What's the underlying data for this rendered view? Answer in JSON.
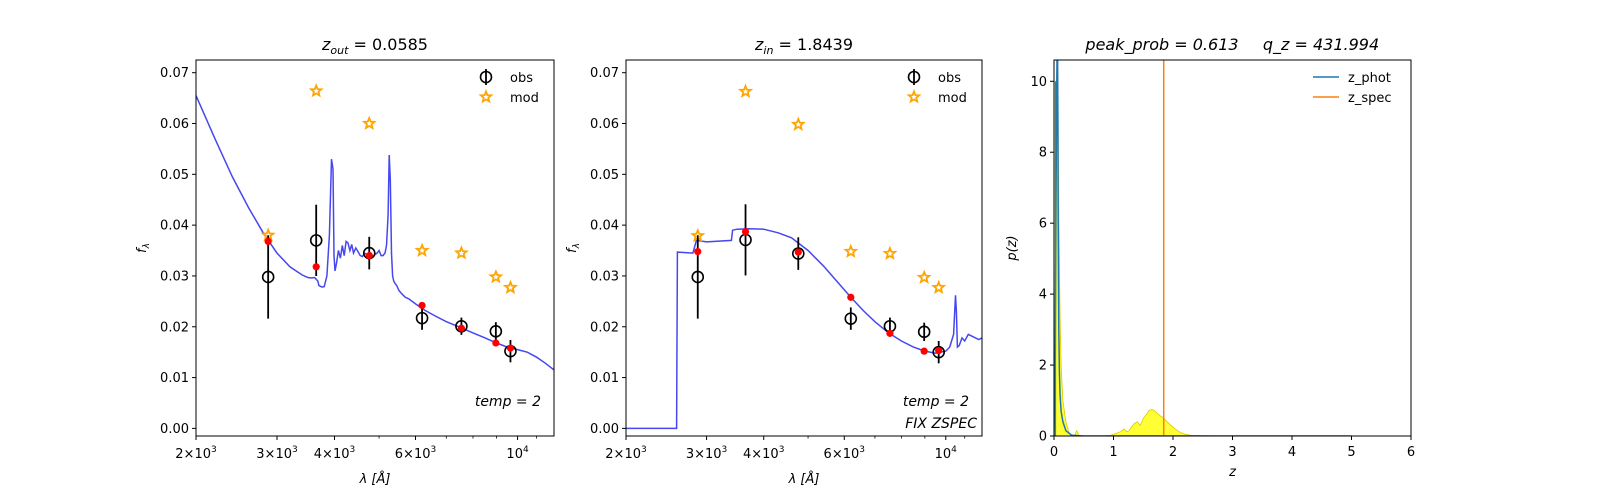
{
  "chart_data": [
    {
      "type": "scatter",
      "title": "z_out = 0.0585",
      "title_parts": {
        "var": "z",
        "sub": "out",
        "value": "= 0.0585"
      },
      "xlabel": "λ [Å]",
      "ylabel": "f_λ",
      "x_scale": "log",
      "xlim": [
        2000,
        12000
      ],
      "ylim": [
        -0.0015,
        0.0725
      ],
      "x_ticks": [
        {
          "value": 2000,
          "mant": "2",
          "exp": "3"
        },
        {
          "value": 3000,
          "mant": "3",
          "exp": "3"
        },
        {
          "value": 4000,
          "mant": "4",
          "exp": "3"
        },
        {
          "value": 6000,
          "mant": "6",
          "exp": "3"
        },
        {
          "value": 10000,
          "mant": "",
          "exp": "4"
        }
      ],
      "y_ticks": [
        "0.00",
        "0.01",
        "0.02",
        "0.03",
        "0.04",
        "0.05",
        "0.06",
        "0.07"
      ],
      "legend": {
        "position": "top-right",
        "entries": [
          "obs",
          "mod"
        ]
      },
      "annotations": [
        "temp = 2"
      ],
      "series": [
        {
          "name": "obs",
          "x": [
            2870,
            3650,
            4760,
            6200,
            7550,
            8970,
            9650
          ],
          "y": [
            0.0298,
            0.037,
            0.0345,
            0.0217,
            0.0201,
            0.0191,
            0.0152
          ],
          "yerr": [
            0.0082,
            0.007,
            0.0032,
            0.0023,
            0.0017,
            0.0018,
            0.0022
          ],
          "color": "#000000"
        },
        {
          "name": "mod",
          "x": [
            2870,
            3650,
            4760,
            6200,
            7550,
            8970,
            9650
          ],
          "y": [
            0.038,
            0.0664,
            0.06,
            0.035,
            0.0345,
            0.0298,
            0.0277
          ],
          "color": "#ffa500"
        },
        {
          "name": "model_at_obs",
          "x": [
            2870,
            3650,
            4760,
            6200,
            7550,
            8970,
            9650
          ],
          "y": [
            0.0368,
            0.0318,
            0.034,
            0.0242,
            0.0197,
            0.0168,
            0.0158
          ],
          "color": "#ff0000"
        },
        {
          "name": "template",
          "color": "#3333ee",
          "x": [
            2000,
            2200,
            2400,
            2600,
            2800,
            3000,
            3200,
            3400,
            3500,
            3560,
            3620,
            3680,
            3700,
            3760,
            3800,
            3850,
            3900,
            3940,
            3970,
            3990,
            4010,
            4040,
            4080,
            4120,
            4160,
            4200,
            4240,
            4280,
            4320,
            4360,
            4400,
            4450,
            4500,
            4550,
            4600,
            4650,
            4700,
            4750,
            4800,
            4850,
            4900,
            4950,
            5000,
            5050,
            5100,
            5150,
            5190,
            5230,
            5260,
            5290,
            5320,
            5350,
            5380,
            5420,
            5470,
            5520,
            5600,
            5700,
            5800,
            6000,
            6300,
            6600,
            7000,
            7500,
            8000,
            8500,
            9000,
            9500,
            10000,
            10500,
            11000,
            11500,
            12000
          ],
          "y": [
            0.0655,
            0.057,
            0.0495,
            0.0435,
            0.0385,
            0.0345,
            0.0318,
            0.0302,
            0.0297,
            0.0296,
            0.0297,
            0.029,
            0.0281,
            0.0278,
            0.0279,
            0.03,
            0.038,
            0.053,
            0.051,
            0.034,
            0.031,
            0.0325,
            0.035,
            0.0335,
            0.036,
            0.034,
            0.0368,
            0.0365,
            0.035,
            0.0362,
            0.0345,
            0.0355,
            0.0348,
            0.034,
            0.0338,
            0.0345,
            0.0342,
            0.034,
            0.0345,
            0.0338,
            0.0342,
            0.0345,
            0.035,
            0.034,
            0.034,
            0.0345,
            0.036,
            0.042,
            0.0538,
            0.049,
            0.0345,
            0.03,
            0.029,
            0.0285,
            0.028,
            0.0272,
            0.0265,
            0.0258,
            0.0255,
            0.0245,
            0.0232,
            0.0222,
            0.021,
            0.0199,
            0.0188,
            0.0178,
            0.0168,
            0.016,
            0.0155,
            0.015,
            0.014,
            0.0128,
            0.0115
          ]
        }
      ]
    },
    {
      "type": "scatter",
      "title": "z_in = 1.8439",
      "title_parts": {
        "var": "z",
        "sub": "in",
        "value": "= 1.8439"
      },
      "xlabel": "λ [Å]",
      "ylabel": "f_λ",
      "x_scale": "log",
      "xlim": [
        2000,
        12000
      ],
      "ylim": [
        -0.0015,
        0.0725
      ],
      "x_ticks": [
        {
          "value": 2000,
          "mant": "2",
          "exp": "3"
        },
        {
          "value": 3000,
          "mant": "3",
          "exp": "3"
        },
        {
          "value": 4000,
          "mant": "4",
          "exp": "3"
        },
        {
          "value": 6000,
          "mant": "6",
          "exp": "3"
        },
        {
          "value": 10000,
          "mant": "",
          "exp": "4"
        }
      ],
      "y_ticks": [
        "0.00",
        "0.01",
        "0.02",
        "0.03",
        "0.04",
        "0.05",
        "0.06",
        "0.07"
      ],
      "legend": {
        "position": "top-right",
        "entries": [
          "obs",
          "mod"
        ]
      },
      "annotations": [
        "temp = 2",
        "FIX ZSPEC"
      ],
      "series": [
        {
          "name": "obs",
          "x": [
            2870,
            3650,
            4760,
            6200,
            7550,
            8970,
            9650
          ],
          "y": [
            0.0298,
            0.0371,
            0.0344,
            0.0216,
            0.0201,
            0.019,
            0.015
          ],
          "yerr": [
            0.0082,
            0.007,
            0.0032,
            0.0022,
            0.0017,
            0.0018,
            0.0022
          ],
          "color": "#000000"
        },
        {
          "name": "mod",
          "x": [
            2870,
            3650,
            4760,
            6200,
            7550,
            8970,
            9650
          ],
          "y": [
            0.0379,
            0.0663,
            0.0598,
            0.0348,
            0.0344,
            0.0297,
            0.0277
          ],
          "color": "#ffa500"
        },
        {
          "name": "model_at_obs",
          "x": [
            2870,
            3650,
            4760,
            6200,
            7550,
            8970,
            9650
          ],
          "y": [
            0.0348,
            0.0387,
            0.0347,
            0.0258,
            0.0187,
            0.0152,
            0.0153
          ],
          "color": "#ff0000"
        },
        {
          "name": "template",
          "color": "#3333ee",
          "x": [
            2000,
            2580,
            2590,
            2800,
            2850,
            3000,
            3400,
            3420,
            3500,
            3700,
            4000,
            4300,
            4600,
            5000,
            5400,
            5800,
            6200,
            6600,
            7000,
            7500,
            8000,
            8500,
            9000,
            9500,
            10000,
            10200,
            10400,
            10500,
            10550,
            10600,
            10700,
            10850,
            11000,
            11200,
            11500,
            11800,
            12000
          ],
          "y": [
            0.0,
            0.0,
            0.0347,
            0.0345,
            0.037,
            0.0367,
            0.037,
            0.039,
            0.0392,
            0.0393,
            0.0392,
            0.0385,
            0.0375,
            0.035,
            0.032,
            0.0288,
            0.0258,
            0.0232,
            0.021,
            0.0188,
            0.0172,
            0.016,
            0.0152,
            0.0148,
            0.0152,
            0.016,
            0.0185,
            0.0262,
            0.023,
            0.016,
            0.0163,
            0.0178,
            0.0172,
            0.0185,
            0.018,
            0.0175,
            0.0178
          ]
        }
      ]
    },
    {
      "type": "area",
      "title": "peak_prob = 0.613      q_z = 431.994",
      "title_parts": {
        "left": "peak_prob = 0.613",
        "right": "q_z = 431.994"
      },
      "xlabel": "z",
      "ylabel": "p(z)",
      "xlim": [
        0,
        6
      ],
      "ylim": [
        0,
        10.6
      ],
      "x_ticks": [
        "0",
        "1",
        "2",
        "3",
        "4",
        "5",
        "6"
      ],
      "y_ticks": [
        "0",
        "2",
        "4",
        "6",
        "8",
        "10"
      ],
      "legend": {
        "position": "top-right",
        "entries": [
          "z_phot",
          "z_spec"
        ]
      },
      "series": [
        {
          "name": "z_phot",
          "type": "line",
          "color": "#1f77b4",
          "x": [
            0.0,
            0.02,
            0.035,
            0.045,
            0.05,
            0.055,
            0.06,
            0.065,
            0.07,
            0.08,
            0.09,
            0.1,
            0.12,
            0.15,
            0.2,
            0.3,
            0.5,
            1.0,
            2.0,
            3.0,
            4.0,
            5.0
          ],
          "y": [
            0.0,
            2.0,
            7.0,
            9.8,
            10.6,
            10.6,
            10.6,
            9.0,
            6.0,
            3.0,
            1.8,
            1.2,
            0.7,
            0.4,
            0.15,
            0.02,
            0.0,
            0.0,
            0.0,
            0.0,
            0.0,
            0.0
          ]
        },
        {
          "name": "z_spec",
          "type": "vline",
          "color": "#ff7f0e",
          "x": 1.8439
        },
        {
          "name": "p(z) fill",
          "type": "fill",
          "color": "#ffff00",
          "x": [
            0.0,
            0.02,
            0.04,
            0.06,
            0.08,
            0.1,
            0.12,
            0.15,
            0.2,
            0.25,
            0.3,
            0.35,
            0.38,
            0.4,
            0.42,
            0.45,
            0.6,
            0.8,
            0.95,
            1.05,
            1.12,
            1.18,
            1.22,
            1.26,
            1.3,
            1.35,
            1.4,
            1.45,
            1.5,
            1.55,
            1.6,
            1.65,
            1.7,
            1.75,
            1.8,
            1.85,
            1.9,
            1.95,
            2.0,
            2.05,
            2.1,
            2.2,
            2.3,
            2.5,
            3.0,
            3.5,
            4.0,
            4.5,
            5.0
          ],
          "y": [
            0.0,
            2.0,
            9.5,
            10.6,
            6.5,
            3.5,
            2.0,
            1.0,
            0.4,
            0.1,
            0.03,
            0.02,
            0.15,
            0.1,
            0.0,
            0.0,
            0.0,
            0.0,
            0.02,
            0.08,
            0.12,
            0.2,
            0.12,
            0.15,
            0.25,
            0.35,
            0.4,
            0.3,
            0.5,
            0.6,
            0.72,
            0.75,
            0.7,
            0.62,
            0.55,
            0.5,
            0.4,
            0.32,
            0.25,
            0.18,
            0.12,
            0.05,
            0.02,
            0.01,
            0.0,
            0.0,
            0.0,
            0.0,
            0.0
          ]
        }
      ]
    }
  ]
}
